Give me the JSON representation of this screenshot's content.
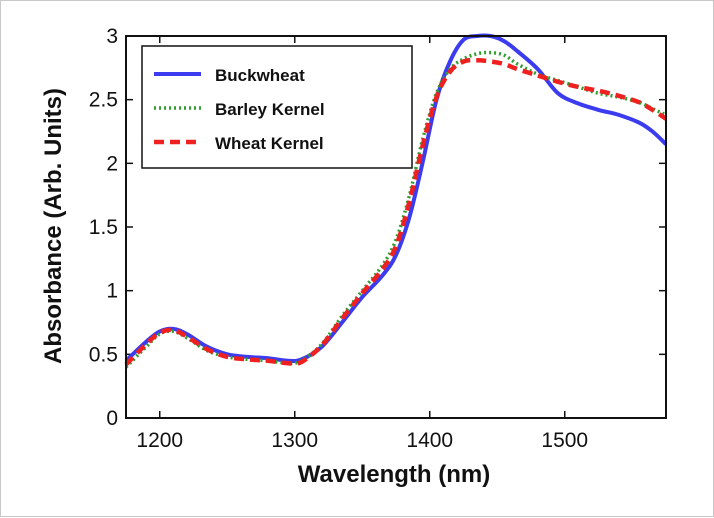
{
  "chart_data": {
    "type": "line",
    "title": "",
    "xlabel": "Wavelength (nm)",
    "ylabel": "Absorbance (Arb. Units)",
    "xlim": [
      1175,
      1575
    ],
    "ylim": [
      0,
      3
    ],
    "xticks": [
      1200,
      1300,
      1400,
      1500
    ],
    "xtick_labels": [
      "1200",
      "1300",
      "1400",
      "1500"
    ],
    "yticks": [
      0,
      0.5,
      1,
      1.5,
      2,
      2.5,
      3
    ],
    "ytick_labels": [
      "0",
      "0.5",
      "1",
      "1.5",
      "2",
      "2.5",
      "3"
    ],
    "grid": false,
    "legend_position": "top-left",
    "series": [
      {
        "name": "Buckwheat",
        "color": "#3b3bf0",
        "style": "solid",
        "x": [
          1175,
          1190,
          1200,
          1210,
          1220,
          1235,
          1250,
          1265,
          1280,
          1295,
          1305,
          1320,
          1335,
          1350,
          1365,
          1375,
          1385,
          1395,
          1405,
          1415,
          1425,
          1435,
          1445,
          1455,
          1465,
          1480,
          1495,
          1510,
          1525,
          1540,
          1555,
          1565,
          1575
        ],
        "y": [
          0.45,
          0.6,
          0.68,
          0.7,
          0.66,
          0.56,
          0.5,
          0.48,
          0.47,
          0.45,
          0.46,
          0.56,
          0.75,
          0.95,
          1.12,
          1.28,
          1.58,
          2.02,
          2.5,
          2.8,
          2.97,
          3.0,
          3.0,
          2.96,
          2.88,
          2.74,
          2.55,
          2.47,
          2.42,
          2.38,
          2.32,
          2.25,
          2.15
        ]
      },
      {
        "name": "Barley Kernel",
        "color": "#2e9e2e",
        "style": "dotted",
        "x": [
          1175,
          1190,
          1200,
          1210,
          1220,
          1235,
          1250,
          1265,
          1280,
          1295,
          1305,
          1320,
          1335,
          1350,
          1365,
          1375,
          1385,
          1395,
          1405,
          1415,
          1425,
          1435,
          1445,
          1455,
          1465,
          1480,
          1495,
          1510,
          1525,
          1540,
          1555,
          1565,
          1575
        ],
        "y": [
          0.4,
          0.56,
          0.66,
          0.68,
          0.63,
          0.53,
          0.48,
          0.46,
          0.45,
          0.43,
          0.45,
          0.58,
          0.8,
          1.0,
          1.2,
          1.4,
          1.75,
          2.2,
          2.55,
          2.74,
          2.82,
          2.86,
          2.87,
          2.85,
          2.78,
          2.7,
          2.65,
          2.6,
          2.55,
          2.52,
          2.48,
          2.43,
          2.38
        ]
      },
      {
        "name": "Wheat Kernel",
        "color": "#ee2020",
        "style": "dashed",
        "x": [
          1175,
          1190,
          1200,
          1210,
          1220,
          1235,
          1250,
          1265,
          1280,
          1295,
          1305,
          1320,
          1335,
          1350,
          1365,
          1375,
          1385,
          1395,
          1405,
          1415,
          1425,
          1435,
          1445,
          1455,
          1465,
          1480,
          1495,
          1510,
          1525,
          1540,
          1555,
          1565,
          1575
        ],
        "y": [
          0.42,
          0.58,
          0.67,
          0.69,
          0.64,
          0.54,
          0.48,
          0.46,
          0.45,
          0.43,
          0.44,
          0.57,
          0.78,
          0.98,
          1.17,
          1.35,
          1.7,
          2.15,
          2.52,
          2.72,
          2.8,
          2.81,
          2.8,
          2.78,
          2.74,
          2.69,
          2.64,
          2.6,
          2.57,
          2.53,
          2.48,
          2.42,
          2.35
        ]
      }
    ]
  }
}
